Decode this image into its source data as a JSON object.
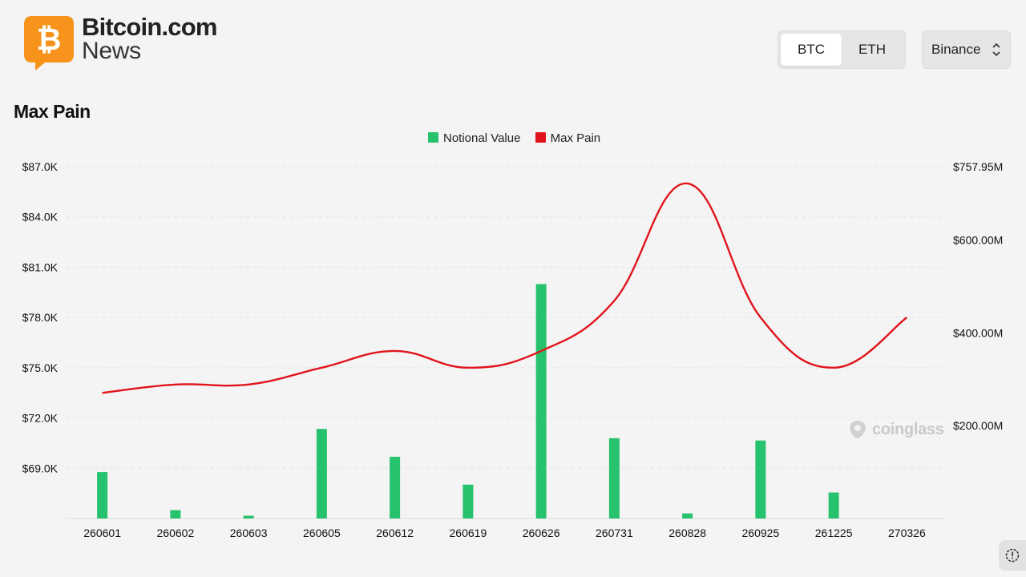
{
  "brand": {
    "name": "Bitcoin.com",
    "sub": "News",
    "logo_icon": "bitcoin-logo-icon",
    "logo_color": "#f7931a"
  },
  "asset_toggle": {
    "options": [
      "BTC",
      "ETH"
    ],
    "selected": "BTC"
  },
  "exchange_select": {
    "value": "Binance",
    "icon": "chevron-updown-icon"
  },
  "page_title": "Max Pain",
  "watermark": {
    "text": "coinglass",
    "icon": "coinglass-logo-icon"
  },
  "help_icon": "help-icon",
  "chart_data": {
    "type": "bar",
    "categories": [
      "260601",
      "260602",
      "260603",
      "260605",
      "260612",
      "260619",
      "260626",
      "260731",
      "260828",
      "260925",
      "261225",
      "270326"
    ],
    "series": [
      {
        "name": "Notional Value",
        "type": "bar",
        "axis": "right",
        "color": "#27c26d",
        "values": [
          100,
          18,
          6,
          193,
          133,
          73,
          505,
          173,
          11,
          168,
          56,
          0
        ]
      },
      {
        "name": "Max Pain",
        "type": "line",
        "axis": "left",
        "color": "#e0141c",
        "smooth": true,
        "values": [
          73500,
          74000,
          74000,
          75000,
          76000,
          75000,
          76000,
          79000,
          86000,
          78000,
          75000,
          78000
        ]
      }
    ],
    "y_left": {
      "ticks": [
        "$69.0K",
        "$72.0K",
        "$75.0K",
        "$78.0K",
        "$81.0K",
        "$84.0K",
        "$87.0K"
      ],
      "range": [
        66000,
        87000
      ]
    },
    "y_right": {
      "ticks": [
        "$200.00M",
        "$400.00M",
        "$600.00M",
        "$757.95M"
      ],
      "range": [
        0,
        757.95
      ],
      "unit": "M"
    },
    "grid": "horizontal-dashed",
    "legend": "top-center"
  }
}
